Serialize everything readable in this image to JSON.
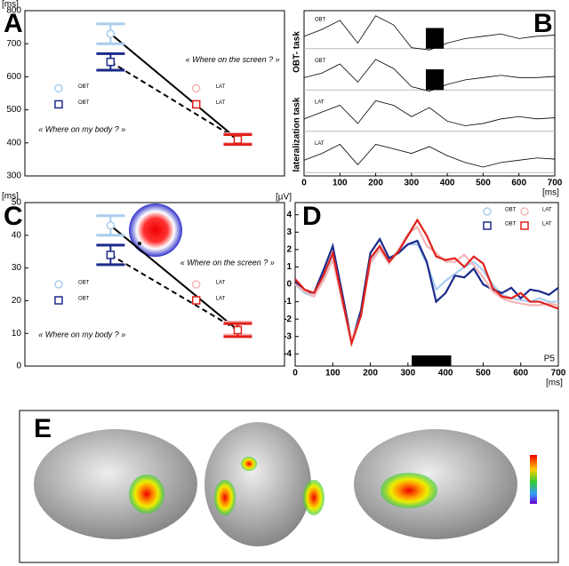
{
  "figure": {
    "panel_labels": [
      "A",
      "B",
      "C",
      "D",
      "E"
    ]
  },
  "chart_data": [
    {
      "type": "errorbar",
      "ylabel": "[ms]",
      "ylim": [
        300,
        800
      ],
      "yticks": [
        300,
        400,
        500,
        600,
        700,
        800
      ],
      "annotations": [
        "« Where on the screen ? »",
        "« Where on my body ? »"
      ],
      "series": [
        {
          "name": "OBT",
          "color": "#a8cdee",
          "marker": "circle",
          "values": [
            730
          ],
          "errors": [
            30
          ]
        },
        {
          "name": "OBT",
          "color": "#1b2a8a",
          "marker": "square",
          "values": [
            645
          ],
          "errors": [
            25
          ]
        },
        {
          "name": "LAT",
          "color": "#f4b6b6",
          "marker": "circle",
          "values": [
            413
          ],
          "errors": [
            15
          ]
        },
        {
          "name": "LAT",
          "color": "#e0201b",
          "marker": "square",
          "values": [
            410
          ],
          "errors": [
            15
          ]
        }
      ]
    },
    {
      "type": "traces",
      "xlabel": "[ms]",
      "xlim": [
        0,
        700
      ],
      "xticks": [
        0,
        100,
        200,
        300,
        400,
        500,
        600,
        700
      ],
      "row_labels": [
        "OBT- task",
        "lateralization task"
      ],
      "highlight": [
        340,
        390
      ],
      "x": [
        0,
        50,
        100,
        150,
        200,
        250,
        300,
        350,
        400,
        450,
        500,
        550,
        600,
        650,
        700
      ],
      "series": [
        {
          "name": "OBT",
          "values": [
            0,
            0.3,
            0.7,
            -0.3,
            0.9,
            0.5,
            -0.5,
            -0.6,
            -0.3,
            -0.1,
            0,
            0.1,
            -0.1,
            0,
            0.05
          ]
        },
        {
          "name": "OBT",
          "values": [
            0,
            0.2,
            0.6,
            -0.2,
            0.8,
            0.4,
            -0.4,
            -0.6,
            -0.3,
            -0.1,
            0,
            0.1,
            0,
            0,
            0.05
          ]
        },
        {
          "name": "LAT",
          "values": [
            0,
            0.3,
            0.6,
            -0.2,
            0.8,
            0.6,
            0.1,
            0.5,
            -0.1,
            -0.3,
            -0.2,
            0,
            0.1,
            0,
            0.05
          ]
        },
        {
          "name": "LAT",
          "values": [
            0,
            0.3,
            0.7,
            -0.2,
            0.7,
            0.5,
            0.3,
            0.6,
            0.2,
            -0.1,
            -0.3,
            -0.1,
            0,
            0.1,
            0.05
          ]
        }
      ]
    },
    {
      "type": "errorbar",
      "ylabel": "[ms]",
      "ylim": [
        0,
        50
      ],
      "yticks": [
        0,
        10,
        20,
        30,
        40,
        50
      ],
      "annotations": [
        "« Where on the screen ? »",
        "« Where on my body ? »"
      ],
      "series": [
        {
          "name": "OBT",
          "color": "#a8cdee",
          "marker": "circle",
          "values": [
            43
          ],
          "errors": [
            3
          ]
        },
        {
          "name": "OBT",
          "color": "#1b2a8a",
          "marker": "square",
          "values": [
            34
          ],
          "errors": [
            3
          ]
        },
        {
          "name": "LAT",
          "color": "#f4b6b6",
          "marker": "circle",
          "values": [
            11.5
          ],
          "errors": [
            2
          ]
        },
        {
          "name": "LAT",
          "color": "#e0201b",
          "marker": "square",
          "values": [
            11
          ],
          "errors": [
            2
          ]
        }
      ]
    },
    {
      "type": "line",
      "ylabel": "[µV]",
      "xlabel": "[ms]",
      "electrode": "P5",
      "xlim": [
        0,
        700
      ],
      "xticks": [
        0,
        100,
        200,
        300,
        400,
        500,
        600,
        700
      ],
      "ylim": [
        -4.7,
        4.7
      ],
      "yticks": [
        -4,
        -3,
        -2,
        -1,
        0,
        1,
        2,
        3,
        4
      ],
      "significance": [
        310,
        415
      ],
      "x": [
        0,
        25,
        50,
        75,
        100,
        125,
        150,
        175,
        200,
        225,
        250,
        275,
        300,
        325,
        350,
        375,
        400,
        425,
        450,
        475,
        500,
        525,
        550,
        575,
        600,
        625,
        650,
        675,
        700
      ],
      "series": [
        {
          "name": "OBT",
          "color": "#a8cdee",
          "marker": "circle",
          "values": [
            0,
            -0.5,
            -0.7,
            0.3,
            1.6,
            -1,
            -3.3,
            -1.8,
            1.3,
            2.1,
            1.3,
            2.0,
            2.3,
            2.3,
            1.2,
            -0.3,
            0.2,
            0.6,
            1.0,
            1.3,
            0.8,
            0,
            -0.6,
            -0.8,
            -0.9,
            -1.0,
            -0.8,
            -1.0,
            -1.0
          ]
        },
        {
          "name": "OBT",
          "color": "#1b2a8a",
          "marker": "square",
          "values": [
            0.2,
            -0.4,
            -0.5,
            0.8,
            2.2,
            -0.5,
            -3.3,
            -1.5,
            1.8,
            2.6,
            1.5,
            1.8,
            2.3,
            2.5,
            1.3,
            -1.0,
            -0.5,
            0.5,
            0.4,
            0.9,
            0,
            -0.3,
            -0.5,
            -0.2,
            -0.8,
            -0.3,
            -0.4,
            -0.6,
            -0.2
          ]
        },
        {
          "name": "LAT",
          "color": "#f4b6b6",
          "marker": "circle",
          "values": [
            0,
            -0.4,
            -0.7,
            0.2,
            1.4,
            -1,
            -3.2,
            -1.8,
            1.2,
            2.0,
            1.2,
            2.0,
            2.9,
            3.3,
            2.2,
            1.8,
            1.3,
            1.3,
            1.7,
            1.1,
            0.4,
            -0.4,
            -0.8,
            -1.0,
            -1.1,
            -1.2,
            -1.2,
            -1.1,
            -1.2
          ]
        },
        {
          "name": "LAT",
          "color": "#e0201b",
          "marker": "square",
          "values": [
            0.3,
            -0.3,
            -0.5,
            0.5,
            1.8,
            -0.8,
            -3.4,
            -1.8,
            1.5,
            2.2,
            1.3,
            1.9,
            2.8,
            3.7,
            2.8,
            1.6,
            1.4,
            1.5,
            1.0,
            1.6,
            1.2,
            -0.2,
            -0.7,
            -0.8,
            -0.5,
            -1.0,
            -1.0,
            -1.2,
            -1.4
          ]
        }
      ]
    }
  ]
}
